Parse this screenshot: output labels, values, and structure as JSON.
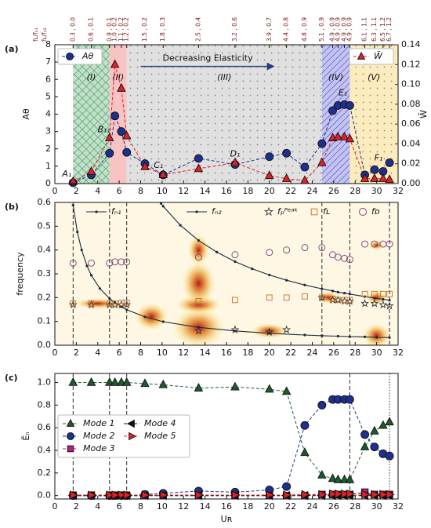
{
  "chart_data": [
    {
      "type": "line",
      "panel_label": "(a)",
      "x": [
        1.7,
        3.4,
        5.1,
        5.6,
        6.2,
        6.7,
        8.4,
        10.1,
        13.4,
        16.8,
        20,
        21.6,
        23.3,
        24.9,
        25.9,
        26.4,
        27,
        27.5,
        28.9,
        29.8,
        30.6,
        31.2
      ],
      "xlim": [
        0,
        32
      ],
      "xticks": [
        0,
        2,
        4,
        6,
        8,
        10,
        12,
        14,
        16,
        18,
        20,
        22,
        24,
        26,
        28,
        30,
        32
      ],
      "ylim": [
        0,
        8
      ],
      "yticks": [
        0,
        1,
        2,
        3,
        4,
        5,
        6,
        7,
        8
      ],
      "y2lim": [
        0,
        0.14
      ],
      "y2ticks": [
        {
          "value": 0,
          "label": "0.00"
        },
        {
          "value": 0.02,
          "label": "0.02"
        },
        {
          "value": 0.04,
          "label": "0.04"
        },
        {
          "value": 0.06,
          "label": "0.06"
        },
        {
          "value": 0.08,
          "label": "0.08"
        },
        {
          "value": 0.1,
          "label": "0.10"
        },
        {
          "value": 0.12,
          "label": "0.12"
        },
        {
          "value": 0.14,
          "label": "0.14"
        }
      ],
      "ylabel": "Aθ",
      "y2label": "W̄",
      "top_axis": {
        "labels": [
          "fʟ/fₙ₁",
          "fʟ/fₙ₂"
        ],
        "ticks": [
          {
            "value": 1.7,
            "label": "0.3 , 0.0"
          },
          {
            "value": 3.4,
            "label": "0.6 , 0.1"
          },
          {
            "value": 5.1,
            "label": "0.9 , 0.1"
          },
          {
            "value": 5.6,
            "label": "1.0 , 0.2"
          },
          {
            "value": 6.2,
            "label": "1.1 , 0.2"
          },
          {
            "value": 6.7,
            "label": "1.2 , 0.2"
          },
          {
            "value": 8.4,
            "label": "1.5 , 0.2"
          },
          {
            "value": 10.1,
            "label": "1.8 , 0.3"
          },
          {
            "value": 13.4,
            "label": "2.5 , 0.4"
          },
          {
            "value": 16.8,
            "label": "3.2 , 0.6"
          },
          {
            "value": 20,
            "label": "3.9 , 0.7"
          },
          {
            "value": 21.6,
            "label": "4.4 , 0.8"
          },
          {
            "value": 23.3,
            "label": "4.8 , 0.9"
          },
          {
            "value": 24.9,
            "label": "5.1 , 0.9"
          },
          {
            "value": 25.9,
            "label": "4.9 , 0.9"
          },
          {
            "value": 26.4,
            "label": "4.9 , 0.9"
          },
          {
            "value": 27,
            "label": "4.9 , 0.9"
          },
          {
            "value": 27.5,
            "label": "4.9 , 0.9"
          },
          {
            "value": 28.9,
            "label": "6.1 , 1.1"
          },
          {
            "value": 29.8,
            "label": "6.3 , 1.1"
          },
          {
            "value": 30.6,
            "label": "6.5 , 1.2"
          },
          {
            "value": 31.2,
            "label": "6.7 , 1.2"
          }
        ]
      },
      "regions": [
        {
          "label": "(I)",
          "range": [
            1.7,
            5.1
          ],
          "color": "#b5dcc0",
          "pattern": "cross"
        },
        {
          "label": "(II)",
          "range": [
            5.1,
            6.7
          ],
          "color": "#f7b9b9",
          "pattern": "none"
        },
        {
          "label": "(III)",
          "range": [
            6.7,
            24.9
          ],
          "color": "#dadada",
          "pattern": "dots"
        },
        {
          "label": "(IV)",
          "range": [
            24.9,
            27.5
          ],
          "color": "#b9b9f2",
          "pattern": "hatch"
        },
        {
          "label": "(V)",
          "range": [
            27.5,
            32
          ],
          "color": "#fbe7b2",
          "pattern": "dots"
        }
      ],
      "arrow_text": "Decreasing Elasticity",
      "annotations": [
        "A₁",
        "B₁₁",
        "C₁",
        "D₁",
        "E₁",
        "F₁"
      ],
      "series": [
        {
          "name": "Aθ",
          "color": "#1f2f8f",
          "marker": "circle",
          "line": "dashed",
          "legend": "upper left",
          "values": [
            0.05,
            0.5,
            1.75,
            3.9,
            3.0,
            1.8,
            1.15,
            0.5,
            1.45,
            1.1,
            1.55,
            1.75,
            0.95,
            2.3,
            4.2,
            4.5,
            4.55,
            4.5,
            0.5,
            0.8,
            0.7,
            1.2
          ]
        },
        {
          "name": "W̄",
          "color": "#e02025",
          "marker": "triangle-up",
          "line": "dashed",
          "axis": "y2",
          "legend": "upper right",
          "values": [
            0.002,
            0.012,
            0.046,
            0.12,
            0.096,
            0.048,
            0.017,
            0.009,
            0.015,
            0.021,
            0.008,
            0.005,
            0.003,
            0.021,
            0.046,
            0.047,
            0.047,
            0.045,
            0.005,
            0.005,
            0.005,
            0.004
          ]
        }
      ]
    },
    {
      "type": "scatter",
      "panel_label": "(b)",
      "xlim": [
        0,
        32
      ],
      "xticks": [
        0,
        2,
        4,
        6,
        8,
        10,
        12,
        14,
        16,
        18,
        20,
        22,
        24,
        26,
        28,
        30,
        32
      ],
      "ylim": [
        0,
        0.6
      ],
      "yticks": [
        {
          "value": 0,
          "label": "0.0"
        },
        {
          "value": 0.1,
          "label": "0.1"
        },
        {
          "value": 0.2,
          "label": "0.2"
        },
        {
          "value": 0.3,
          "label": "0.3"
        },
        {
          "value": 0.4,
          "label": "0.4"
        },
        {
          "value": 0.5,
          "label": "0.5"
        },
        {
          "value": 0.6,
          "label": "0.6"
        }
      ],
      "ylabel": "frequency",
      "vlines": [
        1.7,
        5.1,
        6.7,
        24.9,
        27.5,
        31.2
      ],
      "series": [
        {
          "name": "fₙ₁",
          "color": "#1a2a3a",
          "marker": "dot",
          "line": "solid",
          "x": [
            1.7,
            2.1,
            2.5,
            3,
            3.4,
            4.2,
            5.1,
            5.6,
            6.2,
            6.7,
            8.4,
            10.1,
            13.4,
            16.8,
            20,
            23.3,
            24.9,
            26.4,
            27.5,
            28.9,
            30,
            31.2
          ],
          "values": [
            0.588,
            0.476,
            0.4,
            0.333,
            0.294,
            0.238,
            0.196,
            0.179,
            0.161,
            0.149,
            0.119,
            0.099,
            0.075,
            0.06,
            0.05,
            0.043,
            0.04,
            0.038,
            0.036,
            0.035,
            0.033,
            0.032
          ]
        },
        {
          "name": "fₙ₂",
          "color": "#1a2a3a",
          "marker": "dot",
          "line": "solid",
          "x": [
            9.9,
            10.1,
            11.7,
            13.4,
            15.1,
            16.8,
            18.4,
            20,
            21.6,
            23.3,
            24.9,
            25.9,
            26.4,
            27,
            27.5,
            28.9,
            29.8,
            30.6,
            31.2
          ],
          "values": [
            0.596,
            0.584,
            0.504,
            0.44,
            0.391,
            0.351,
            0.321,
            0.295,
            0.273,
            0.253,
            0.237,
            0.228,
            0.223,
            0.219,
            0.215,
            0.204,
            0.198,
            0.193,
            0.189
          ]
        },
        {
          "name": "fₚᴾᵉᵃᵏ",
          "color": "#333333",
          "fill": "none",
          "marker": "star",
          "line": "none",
          "x": [
            1.7,
            3.4,
            5.1,
            5.6,
            6.2,
            6.7,
            13.4,
            16.8,
            20,
            21.6,
            24.9,
            25.9,
            26.4,
            27,
            27.5,
            28.9,
            29.8,
            30.6,
            31.2
          ],
          "values": [
            0.17,
            0.17,
            0.17,
            0.17,
            0.17,
            0.17,
            0.06,
            0.065,
            0.055,
            0.065,
            0.2,
            0.19,
            0.19,
            0.185,
            0.185,
            0.175,
            0.175,
            0.17,
            0.165
          ]
        },
        {
          "name": "fʟ",
          "color": "#c8702a",
          "fill": "none",
          "marker": "square",
          "line": "none",
          "x": [
            1.7,
            3.4,
            5.1,
            5.6,
            6.2,
            6.7,
            13.4,
            16.8,
            20,
            21.6,
            23.3,
            24.9,
            25.9,
            26.4,
            27,
            27.5,
            28.9,
            29.8,
            30.6,
            31.2
          ],
          "values": [
            0.175,
            0.175,
            0.175,
            0.175,
            0.178,
            0.178,
            0.185,
            0.19,
            0.2,
            0.2,
            0.205,
            0.2,
            0.195,
            0.19,
            0.19,
            0.19,
            0.215,
            0.215,
            0.215,
            0.215
          ]
        },
        {
          "name": "fᴅ",
          "color": "#7b3f6e",
          "fill": "none",
          "marker": "circle",
          "line": "none",
          "x": [
            1.7,
            3.4,
            5.1,
            5.6,
            6.2,
            6.7,
            13.4,
            16.8,
            20,
            21.6,
            23.3,
            24.9,
            25.9,
            26.4,
            27,
            27.5,
            28.9,
            29.8,
            30.6,
            31.2
          ],
          "values": [
            0.345,
            0.345,
            0.345,
            0.35,
            0.35,
            0.35,
            0.37,
            0.38,
            0.39,
            0.4,
            0.41,
            0.41,
            0.38,
            0.37,
            0.365,
            0.36,
            0.425,
            0.425,
            0.425,
            0.425
          ]
        }
      ]
    },
    {
      "type": "line",
      "panel_label": "(c)",
      "x": [
        1.7,
        3.4,
        5.1,
        5.6,
        6.2,
        6.7,
        8.4,
        10.1,
        13.4,
        16.8,
        20,
        21.6,
        23.3,
        24.9,
        25.9,
        26.4,
        27,
        27.5,
        28.9,
        29.8,
        30.6,
        31.2
      ],
      "xlim": [
        0,
        32
      ],
      "xticks": [
        0,
        2,
        4,
        6,
        8,
        10,
        12,
        14,
        16,
        18,
        20,
        22,
        24,
        26,
        28,
        30,
        32
      ],
      "ylim": [
        -0.03,
        1.08
      ],
      "yticks": [
        {
          "value": 0,
          "label": "0.0"
        },
        {
          "value": 0.2,
          "label": "0.2"
        },
        {
          "value": 0.4,
          "label": "0.4"
        },
        {
          "value": 0.6,
          "label": "0.6"
        },
        {
          "value": 0.8,
          "label": "0.8"
        },
        {
          "value": 1,
          "label": "1.0"
        }
      ],
      "ylabel": "Ēₙ",
      "xlabel": "Uʀ",
      "vlines": [
        1.7,
        5.1,
        6.7,
        27.5,
        31.2
      ],
      "series": [
        {
          "name": "Mode 1",
          "color": "#1e5a2e",
          "marker": "triangle-up",
          "line": "dashed",
          "values": [
            1,
            1,
            1,
            1,
            1,
            1,
            0.99,
            0.98,
            0.95,
            0.96,
            0.94,
            0.92,
            0.38,
            0.18,
            0.15,
            0.14,
            0.14,
            0.14,
            0.43,
            0.57,
            0.62,
            0.65
          ]
        },
        {
          "name": "Mode 2",
          "color": "#1f2f8f",
          "marker": "circle",
          "line": "dashed",
          "values": [
            0,
            0,
            0,
            0,
            0,
            0,
            0.01,
            0.02,
            0.04,
            0.03,
            0.05,
            0.08,
            0.62,
            0.8,
            0.85,
            0.85,
            0.85,
            0.85,
            0.54,
            0.43,
            0.37,
            0.35
          ]
        },
        {
          "name": "Mode 3",
          "color": "#b0207a",
          "marker": "square",
          "line": "dashed",
          "values": [
            0,
            0,
            0,
            0,
            0,
            0,
            0,
            0,
            0,
            0,
            0,
            0,
            0,
            0.01,
            0.01,
            0.01,
            0.01,
            0.01,
            0.03,
            0.01,
            0.01,
            0.01
          ]
        },
        {
          "name": "Mode 4",
          "color": "#111111",
          "marker": "triangle-left",
          "line": "dashed",
          "values": [
            0,
            0,
            0,
            0,
            0,
            0,
            0,
            0,
            0,
            0,
            0,
            0,
            0,
            0,
            0,
            0,
            0,
            0,
            0,
            0,
            0,
            0
          ]
        },
        {
          "name": "Mode 5",
          "color": "#e02025",
          "marker": "triangle-right",
          "line": "dashed",
          "values": [
            0.005,
            0.005,
            0.005,
            0.005,
            0.005,
            0.005,
            0.005,
            0.005,
            0.005,
            0.005,
            0.005,
            0.005,
            0.01,
            0.01,
            0.015,
            0.015,
            0.015,
            0.015,
            0.01,
            0.01,
            0.01,
            0.01
          ]
        }
      ]
    }
  ]
}
